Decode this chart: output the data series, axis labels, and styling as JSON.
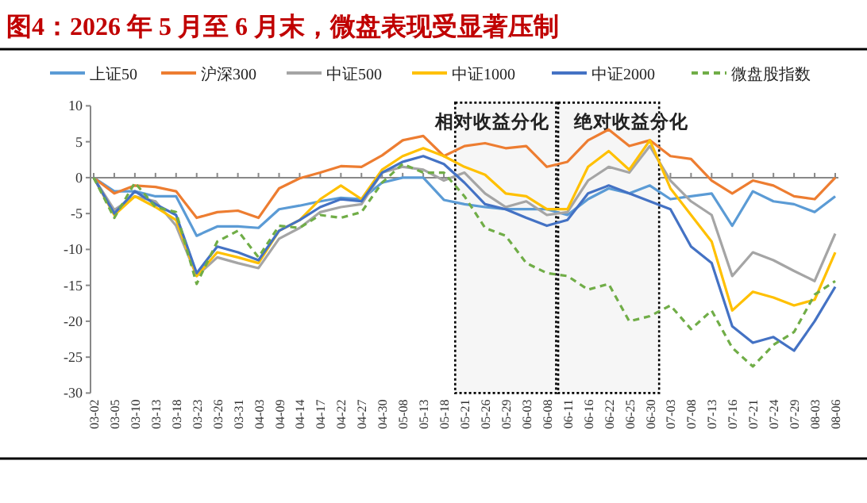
{
  "chart_data": {
    "type": "line",
    "title": "图4：2026 年 5 月至 6 月末，微盘表现受显著压制",
    "categories": [
      "03-02",
      "03-05",
      "03-10",
      "03-13",
      "03-18",
      "03-23",
      "03-26",
      "03-31",
      "04-03",
      "04-09",
      "04-14",
      "04-17",
      "04-22",
      "04-27",
      "04-30",
      "05-08",
      "05-13",
      "05-18",
      "05-21",
      "05-26",
      "05-29",
      "06-03",
      "06-08",
      "06-11",
      "06-16",
      "06-22",
      "06-25",
      "06-30",
      "07-03",
      "07-08",
      "07-13",
      "07-16",
      "07-21",
      "07-24",
      "07-29",
      "08-03",
      "08-06"
    ],
    "series": [
      {
        "name": "上证50",
        "color": "#5b9bd5",
        "values": [
          0,
          -1.9,
          -1.9,
          -2.6,
          -2.6,
          -8.1,
          -6.8,
          -6.8,
          -7,
          -4.4,
          -3.9,
          -3.3,
          -2.8,
          -3,
          -0.7,
          0,
          0,
          -3.1,
          -3.7,
          -4.1,
          -4.4,
          -4.4,
          -4.4,
          -5.2,
          -3,
          -1.5,
          -2.2,
          -1.1,
          -3,
          -2.6,
          -2.2,
          -6.7,
          -1.9,
          -3.3,
          -3.7,
          -4.8,
          -2.6
        ]
      },
      {
        "name": "沪深300",
        "color": "#ed7d31",
        "values": [
          0,
          -2.2,
          -1.1,
          -1.3,
          -1.9,
          -5.6,
          -4.8,
          -4.6,
          -5.6,
          -1.5,
          -0.1,
          0.7,
          1.6,
          1.5,
          3.1,
          5.2,
          5.8,
          3,
          4.4,
          4.8,
          4.1,
          4.4,
          1.5,
          2.2,
          5.2,
          6.7,
          4.4,
          5.2,
          3,
          2.6,
          -0.4,
          -2.2,
          -0.4,
          -1.1,
          -2.6,
          -3,
          0
        ]
      },
      {
        "name": "中证500",
        "color": "#a5a5a5",
        "values": [
          0,
          -4.5,
          -2.6,
          -3.3,
          -6.7,
          -13.7,
          -11.1,
          -11.9,
          -12.6,
          -8.5,
          -7,
          -4.8,
          -4.1,
          -3.7,
          0.7,
          1.5,
          1.1,
          -0.4,
          0.7,
          -2.2,
          -4.1,
          -3.3,
          -5.2,
          -4.8,
          -0.4,
          1.5,
          0.7,
          4.4,
          -0.4,
          -3.3,
          -5.2,
          -13.7,
          -10.4,
          -11.5,
          -13,
          -14.4,
          -7.8
        ]
      },
      {
        "name": "中证1000",
        "color": "#ffc000",
        "values": [
          0,
          -5.2,
          -2.6,
          -4.1,
          -5.9,
          -13.7,
          -10.4,
          -11.1,
          -11.9,
          -7.4,
          -5.9,
          -3,
          -1.1,
          -3,
          1.1,
          3,
          4.1,
          3,
          1.5,
          0.4,
          -2.2,
          -2.6,
          -4.4,
          -4.4,
          1.5,
          3.7,
          1.1,
          5.2,
          -1.5,
          -5.2,
          -8.9,
          -18.5,
          -15.9,
          -16.7,
          -17.8,
          -17,
          -10.4
        ]
      },
      {
        "name": "中证2000",
        "color": "#4472c4",
        "values": [
          0,
          -5,
          -1.9,
          -3.7,
          -5.2,
          -13.3,
          -9.6,
          -10.4,
          -11.5,
          -7.4,
          -5.9,
          -4.1,
          -3,
          -3.3,
          0.7,
          2.2,
          3,
          1.9,
          -0.7,
          -3.7,
          -4.4,
          -5.6,
          -6.7,
          -5.9,
          -2.2,
          -1.1,
          -2.2,
          -3.3,
          -4.4,
          -9.6,
          -11.9,
          -20.7,
          -23,
          -22.2,
          -24.1,
          -20,
          -15.2
        ]
      },
      {
        "name": "微盘股指数",
        "color": "#70ad47",
        "line_style": "dashed",
        "values": [
          0,
          -5.6,
          -0.7,
          -4.1,
          -4.8,
          -14.8,
          -8.9,
          -7.4,
          -11.1,
          -6.7,
          -7,
          -5.2,
          -5.6,
          -4.8,
          -0.7,
          1.9,
          0.7,
          0.7,
          -2.6,
          -7,
          -8.1,
          -11.9,
          -13.3,
          -13.7,
          -15.6,
          -14.8,
          -20,
          -19.3,
          -17.8,
          -21.1,
          -18.5,
          -23.7,
          -26.3,
          -23.3,
          -21.5,
          -16.3,
          -14.4
        ]
      }
    ],
    "ylim": [
      -30,
      10
    ],
    "yticks": [
      -30,
      -25,
      -20,
      -15,
      -10,
      -5,
      0,
      5,
      10
    ],
    "bands": [
      {
        "axis": "x",
        "from": "05-21",
        "to": "06-08",
        "label": "相对收益分化",
        "color": "#000000"
      },
      {
        "axis": "x",
        "from": "06-11",
        "to": "06-30",
        "label": "绝对收益分化",
        "color": "#000000"
      }
    ],
    "legend": "top",
    "marker": "none"
  }
}
